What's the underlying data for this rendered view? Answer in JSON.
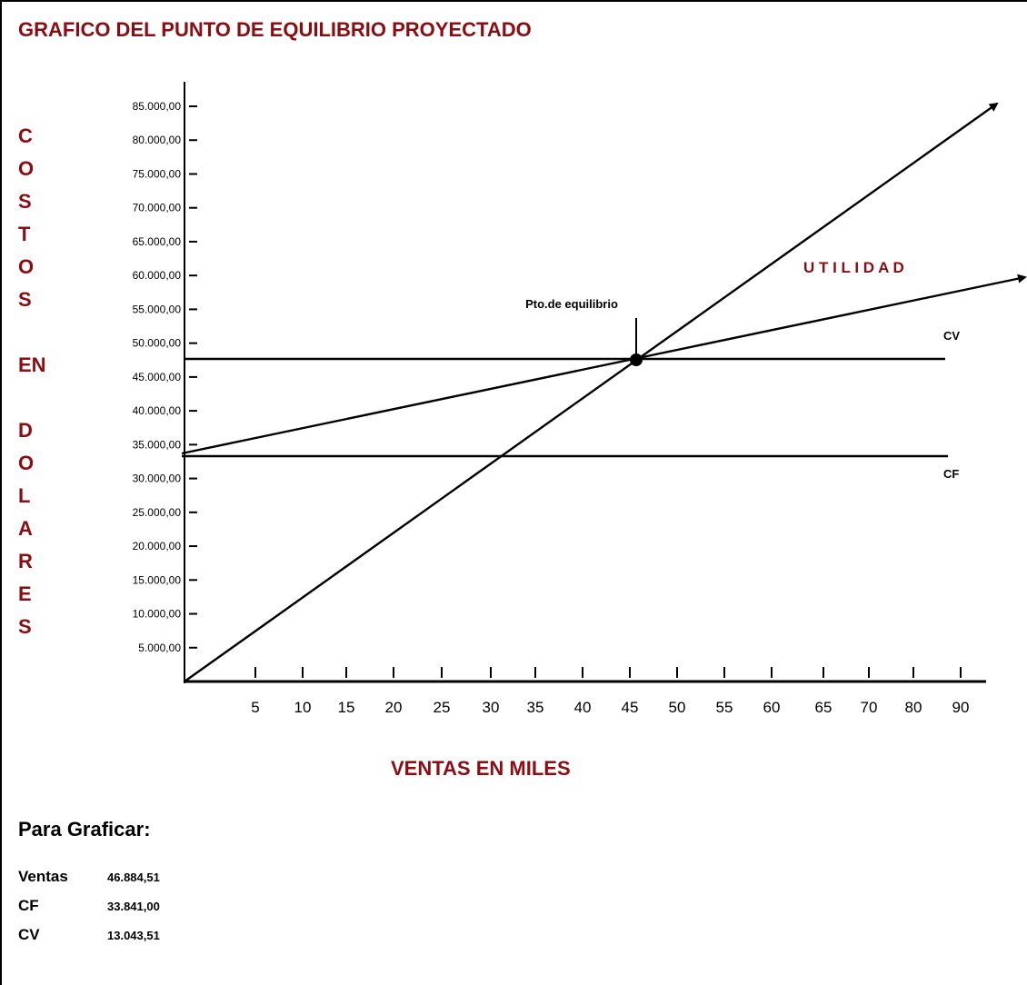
{
  "title": "GRAFICO DEL PUNTO DE EQUILIBRIO PROYECTADO",
  "y_axis_letters": [
    "C",
    "O",
    "S",
    "T",
    "O",
    "S",
    "",
    "EN",
    "",
    "D",
    "O",
    "L",
    "A",
    "R",
    "E",
    "S"
  ],
  "x_axis_title": "VENTAS EN MILES",
  "section_title": "Para Graficar:",
  "summary": [
    {
      "label": "Ventas",
      "value": "46.884,51"
    },
    {
      "label": "CF",
      "value": "33.841,00"
    },
    {
      "label": "CV",
      "value": "13.043,51"
    }
  ],
  "colors": {
    "accent": "#8b0d12",
    "line": "#000000"
  },
  "chart_data": {
    "type": "line",
    "title": "GRAFICO DEL PUNTO DE EQUILIBRIO PROYECTADO",
    "xlabel": "VENTAS EN MILES",
    "ylabel": "COSTOS EN DOLARES",
    "x_ticks": [
      "5",
      "10",
      "15",
      "20",
      "25",
      "30",
      "35",
      "40",
      "45",
      "50",
      "55",
      "60",
      "65",
      "70",
      "80",
      "90"
    ],
    "y_ticks": [
      "5.000,00",
      "10.000,00",
      "15.000,00",
      "20.000,00",
      "25.000,00",
      "30.000,00",
      "35.000,00",
      "40.000,00",
      "45.000,00",
      "50.000,00",
      "55.000,00",
      "60.000,00",
      "65.000,00",
      "70.000,00",
      "75.000,00",
      "80.000,00",
      "85.000,00"
    ],
    "ylim": [
      0,
      85000
    ],
    "xlim": [
      0,
      90
    ],
    "series": [
      {
        "name": "",
        "x": [
          0,
          95
        ],
        "y": [
          0,
          95000
        ],
        "arrow": true
      },
      {
        "name": "",
        "x": [
          0,
          96
        ],
        "y": [
          32000,
          61000
        ],
        "arrow": true
      },
      {
        "name": "CV",
        "x": [
          0,
          88
        ],
        "y": [
          46800,
          46800
        ],
        "arrow": false
      },
      {
        "name": "CF",
        "x": [
          0,
          88
        ],
        "y": [
          31500,
          31500
        ],
        "arrow": false
      }
    ],
    "annotations": [
      {
        "text": "Pto.de equilibrio",
        "x": 45.5,
        "y": 46800
      },
      {
        "text": "U T I L I D A D",
        "x": 78,
        "y": 60000
      },
      {
        "text": "CV",
        "x": 88,
        "y": 50000
      },
      {
        "text": "CF",
        "x": 88,
        "y": 29000
      }
    ]
  }
}
